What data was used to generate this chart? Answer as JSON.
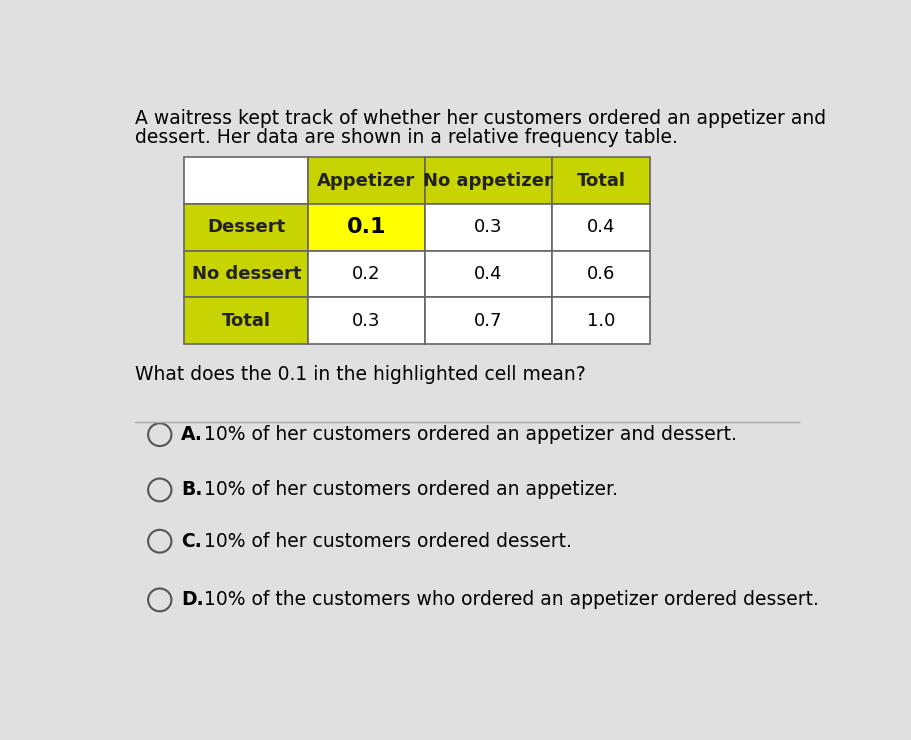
{
  "title_line1": "A waitress kept track of whether her customers ordered an appetizer and",
  "title_line2": "dessert. Her data are shown in a relative frequency table.",
  "question": "What does the 0.1 in the highlighted cell mean?",
  "col_headers": [
    "",
    "Appetizer",
    "No appetizer",
    "Total"
  ],
  "row_headers": [
    "Dessert",
    "No dessert",
    "Total"
  ],
  "table_data": [
    [
      "0.1",
      "0.3",
      "0.4"
    ],
    [
      "0.2",
      "0.4",
      "0.6"
    ],
    [
      "0.3",
      "0.7",
      "1.0"
    ]
  ],
  "header_bg": "#c8d400",
  "row_header_bg": "#c8d400",
  "highlight_bg": "#ffff00",
  "header_text_color": "#222222",
  "bg_color": "#e0e0e0",
  "options": [
    [
      "A.",
      "10% of her customers ordered an appetizer and dessert."
    ],
    [
      "B.",
      "10% of her customers ordered an appetizer."
    ],
    [
      "C.",
      "10% of her customers ordered dessert."
    ],
    [
      "D.",
      "10% of the customers who ordered an appetizer ordered dessert."
    ]
  ],
  "title_fontsize": 13.5,
  "question_fontsize": 13.5,
  "option_fontsize": 13.5,
  "table_fontsize": 13
}
